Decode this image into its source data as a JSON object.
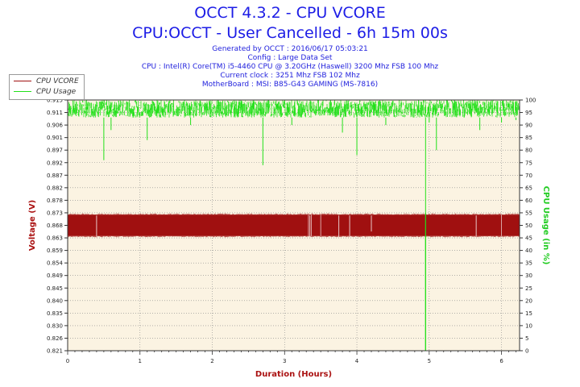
{
  "header": {
    "title": "OCCT 4.3.2 - CPU VCORE",
    "subtitle": "CPU:OCCT - User Cancelled - 6h 15m 00s",
    "info": [
      "Generated by OCCT : 2016/06/17 05:03:21",
      "Config : Large Data Set",
      "CPU : Intel(R) Core(TM) i5-4460 CPU @ 3.20GHz (Haswell) 3200 Mhz FSB 100 Mhz",
      "Current clock : 3251 Mhz FSB 102 Mhz",
      "MotherBoard : MSI: B85-G43 GAMING (MS-7816)"
    ]
  },
  "legend": [
    {
      "label": "CPU VCORE",
      "color": "#a01010"
    },
    {
      "label": "CPU Usage",
      "color": "#22e01a"
    }
  ],
  "colors": {
    "plot_background": "#fbf3e2",
    "grid": "#888888",
    "vcore": "#a01010",
    "usage": "#22e01a",
    "title": "#1c1ce6",
    "left_axis_title": "#aa1111",
    "right_axis_title": "#22cc22",
    "x_axis_title": "#aa1111"
  },
  "chart_data": {
    "type": "line",
    "xlabel": "Duration (Hours)",
    "ylabel_left": "Voltage (V)",
    "ylabel_right": "CPU Usage (in %)",
    "xlim": [
      0,
      6.25
    ],
    "ylim_left": [
      0.821,
      0.915
    ],
    "ylim_right": [
      0,
      100
    ],
    "grid": true,
    "legend_position": "top-left",
    "x_ticks": [
      "0",
      "1",
      "2",
      "3",
      "4",
      "5",
      "6"
    ],
    "y_ticks_left": [
      "0.821",
      "0.826",
      "0.830",
      "0.835",
      "0.840",
      "0.845",
      "0.849",
      "0.854",
      "0.859",
      "0.863",
      "0.868",
      "0.873",
      "0.878",
      "0.882",
      "0.887",
      "0.892",
      "0.897",
      "0.901",
      "0.906",
      "0.911",
      "0.915"
    ],
    "y_ticks_right": [
      "0",
      "5",
      "10",
      "15",
      "20",
      "25",
      "30",
      "35",
      "40",
      "45",
      "50",
      "55",
      "60",
      "65",
      "70",
      "75",
      "80",
      "85",
      "90",
      "95",
      "100"
    ],
    "series": [
      {
        "name": "CPU VCORE",
        "band": [
          0.864,
          0.872
        ],
        "dips": [
          [
            0.4,
            0.864
          ],
          [
            3.35,
            0.864
          ],
          [
            3.75,
            0.864
          ],
          [
            3.9,
            0.864
          ],
          [
            4.2,
            0.866
          ],
          [
            5.65,
            0.864
          ]
        ],
        "spikes": [
          [
            3.33,
            0.872
          ],
          [
            3.37,
            0.872
          ],
          [
            3.5,
            0.872
          ],
          [
            6.0,
            0.872
          ]
        ]
      },
      {
        "name": "CPU Usage",
        "band": [
          93,
          100
        ],
        "dips": [
          [
            0.5,
            76
          ],
          [
            0.6,
            88
          ],
          [
            1.1,
            84
          ],
          [
            1.7,
            90
          ],
          [
            2.7,
            74
          ],
          [
            3.1,
            90
          ],
          [
            3.8,
            87
          ],
          [
            4.0,
            78
          ],
          [
            4.4,
            90
          ],
          [
            4.95,
            0
          ],
          [
            5.0,
            91
          ],
          [
            5.1,
            80
          ],
          [
            5.7,
            88
          ],
          [
            6.0,
            91
          ],
          [
            6.2,
            92
          ]
        ]
      }
    ]
  }
}
